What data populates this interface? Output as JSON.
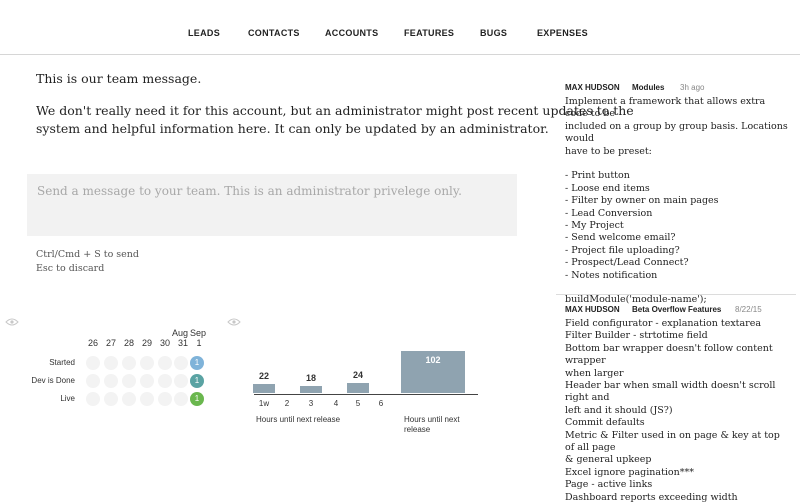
{
  "nav": [
    "LEADS",
    "CONTACTS",
    "ACCOUNTS",
    "FEATURES",
    "BUGS",
    "EXPENSES"
  ],
  "team_message": {
    "line1": "This is our team message.",
    "line2": "We don't really need it for this account, but an administrator might post recent updates to the",
    "line3": "system and helpful information here. It can only be updated by an administrator."
  },
  "composer": {
    "placeholder": "Send a message to your team. This is an administrator privelege only.",
    "hint_send": "Ctrl/Cmd + S to send",
    "hint_discard": "Esc to discard"
  },
  "status_grid": {
    "months": [
      "Aug",
      "Sep"
    ],
    "days": [
      "26",
      "27",
      "28",
      "29",
      "30",
      "31",
      "1"
    ],
    "rows": [
      {
        "label": "Started",
        "count": "1",
        "color": "#7fb3d9"
      },
      {
        "label": "Dev is Done",
        "count": "1",
        "color": "#5aa3a3"
      },
      {
        "label": "Live",
        "count": "1",
        "color": "#6ab74e"
      }
    ]
  },
  "chart_data": {
    "type": "bar",
    "categories": [
      "1w",
      "2",
      "3",
      "4",
      "5",
      "6",
      "Hours until next release"
    ],
    "values": [
      22,
      0,
      18,
      0,
      24,
      0,
      102
    ],
    "value_labels": [
      "22",
      "",
      "18",
      "",
      "24",
      "",
      "102"
    ],
    "xlabel_left": "Hours until next release",
    "xlabel_right": "Hours until next release",
    "bar_color": "#8fa3b0"
  },
  "feed": [
    {
      "author": "MAX HUDSON",
      "topic": "Modules",
      "time": "3h ago",
      "lines": [
        "Implement a framework that allows extra code to be",
        "included on a group by group basis. Locations would",
        "have to be preset:",
        "",
        "- Print button",
        "- Loose end items",
        "- Filter by owner on main pages",
        "- Lead Conversion",
        "- My Project",
        "- Send welcome email?",
        "- Project file uploading?",
        "- Prospect/Lead Connect?",
        "- Notes notification",
        "",
        "buildModule('module-name');"
      ]
    },
    {
      "author": "MAX HUDSON",
      "topic": "Beta Overflow Features",
      "time": "8/22/15",
      "lines": [
        "Field configurator - explanation textarea",
        "Filter Builder - strtotime field",
        "Bottom bar wrapper doesn't follow content wrapper",
        "when larger",
        "Header bar when small width doesn't scroll right and",
        "left and it should (JS?)",
        "Commit defaults",
        "Metric & Filter used in on page & key at top of all page",
        "& general upkeep",
        "Excel ignore pagination***",
        "Page - active links",
        "Dashboard reports exceeding width"
      ]
    }
  ]
}
